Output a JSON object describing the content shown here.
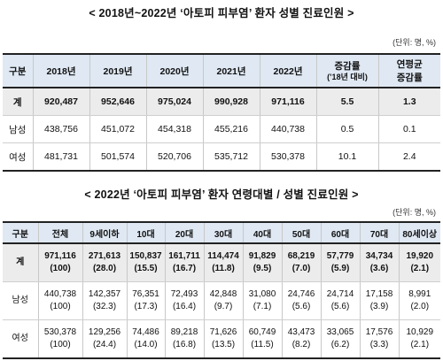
{
  "title1": "< 2018년~2022년 ‘아토피 피부염’ 환자 성별 진료인원 >",
  "unit1": "(단위: 명, %)",
  "table1": {
    "headers": [
      "구분",
      "2018년",
      "2019년",
      "2020년",
      "2021년",
      "2022년",
      "증감률",
      "연평균"
    ],
    "header_sub": [
      "",
      "",
      "",
      "",
      "",
      "",
      "(’18년 대비)",
      "증감률"
    ],
    "rows": [
      {
        "label": "계",
        "values": [
          "920,487",
          "952,646",
          "975,024",
          "990,928",
          "971,116",
          "5.5",
          "1.3"
        ]
      },
      {
        "label": "남성",
        "values": [
          "438,756",
          "451,072",
          "454,318",
          "455,216",
          "440,738",
          "0.5",
          "0.1"
        ]
      },
      {
        "label": "여성",
        "values": [
          "481,731",
          "501,574",
          "520,706",
          "535,712",
          "530,378",
          "10.1",
          "2.4"
        ]
      }
    ]
  },
  "title2": "< 2022년 ‘아토피 피부염’ 환자 연령대별 / 성별 진료인원 >",
  "unit2": "(단위: 명, %)",
  "table2": {
    "headers": [
      "구분",
      "전체",
      "9세이하",
      "10대",
      "20대",
      "30대",
      "40대",
      "50대",
      "60대",
      "70대",
      "80세이상"
    ],
    "rows": [
      {
        "label": "계",
        "values": [
          "971,116",
          "271,613",
          "150,837",
          "161,711",
          "114,474",
          "91,829",
          "68,219",
          "57,779",
          "34,734",
          "19,920"
        ],
        "pcts": [
          "(100)",
          "(28.0)",
          "(15.5)",
          "(16.7)",
          "(11.8)",
          "(9.5)",
          "(7.0)",
          "(5.9)",
          "(3.6)",
          "(2.1)"
        ]
      },
      {
        "label": "남성",
        "values": [
          "440,738",
          "142,357",
          "76,351",
          "72,493",
          "42,848",
          "31,080",
          "24,746",
          "24,714",
          "17,158",
          "8,991"
        ],
        "pcts": [
          "(100)",
          "(32.3)",
          "(17.3)",
          "(16.4)",
          "(9.7)",
          "(7.1)",
          "(5.6)",
          "(5.6)",
          "(3.9)",
          "(2.0)"
        ]
      },
      {
        "label": "여성",
        "values": [
          "530,378",
          "129,256",
          "74,486",
          "89,218",
          "71,626",
          "60,749",
          "43,473",
          "33,065",
          "17,576",
          "10,929"
        ],
        "pcts": [
          "(100)",
          "(24.4)",
          "(14.0)",
          "(16.8)",
          "(13.5)",
          "(11.5)",
          "(8.2)",
          "(6.2)",
          "(3.3)",
          "(2.1)"
        ]
      }
    ]
  }
}
